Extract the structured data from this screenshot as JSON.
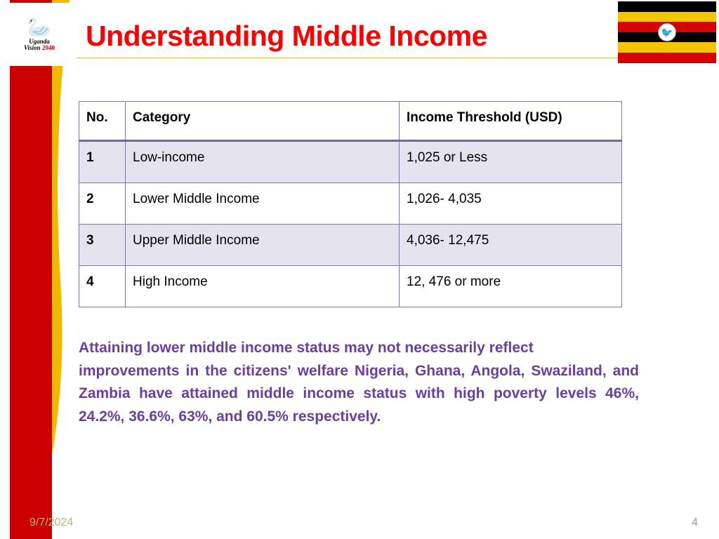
{
  "logo": {
    "line1": "Uganda",
    "line2_a": "Vision",
    "line2_b": "2040"
  },
  "flag": {
    "stripes": [
      "#000000",
      "#f5c500",
      "#d90000",
      "#000000",
      "#f5c500",
      "#d90000"
    ]
  },
  "title": "Understanding Middle Income",
  "table": {
    "columns": [
      "No.",
      "Category",
      "Income Threshold (USD)"
    ],
    "rows": [
      {
        "no": "1",
        "category": "Low-income",
        "threshold": "1,025 or Less",
        "shaded": true
      },
      {
        "no": "2",
        "category": "Lower Middle Income",
        "threshold": "1,026- 4,035",
        "shaded": false
      },
      {
        "no": "3",
        "category": "Upper Middle Income",
        "threshold": "4,036- 12,475",
        "shaded": true
      },
      {
        "no": "4",
        "category": "High Income",
        "threshold": "12, 476 or more",
        "shaded": false
      }
    ],
    "border_color": "#7a7aa8",
    "shaded_bg": "#e4e3ee"
  },
  "body_text": "Attaining lower middle income status may not necessarily reflect\nimprovements in  the citizens' welfare Nigeria, Ghana, Angola, Swaziland, and Zambia have attained  middle income status with high poverty levels 46%, 24.2%, 36.6%, 63%, and 60.5% respectively.",
  "footer": {
    "date": "9/7/2024",
    "page": "4"
  },
  "colors": {
    "title": "#ff0000",
    "body_text": "#6a3fa0",
    "red_bar": "#cc0000",
    "yellow": "#f0b800",
    "underline": "#dcbf4e"
  }
}
